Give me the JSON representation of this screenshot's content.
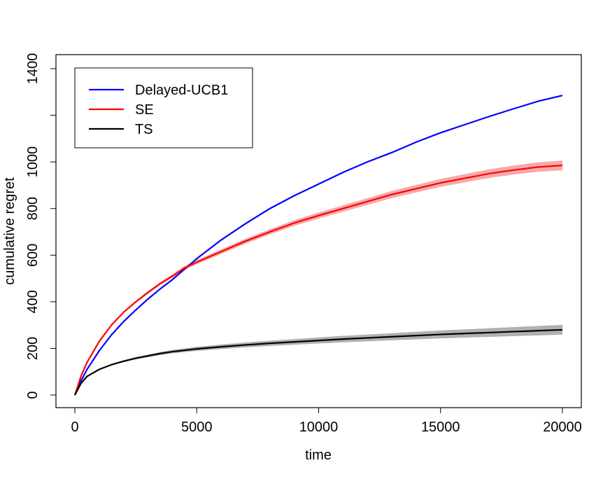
{
  "chart_data": {
    "type": "line",
    "title": "",
    "xlabel": "time",
    "ylabel": "cumulative regret",
    "xlim": [
      0,
      20000
    ],
    "ylim": [
      0,
      1400
    ],
    "x_ticks": [
      0,
      5000,
      10000,
      15000,
      20000
    ],
    "y_ticks": [
      0,
      200,
      400,
      600,
      800,
      1000,
      1400
    ],
    "grid": false,
    "legend_position": "top-left",
    "x": [
      0,
      250,
      500,
      1000,
      1500,
      2000,
      2500,
      3000,
      3500,
      4000,
      4500,
      5000,
      6000,
      7000,
      8000,
      9000,
      10000,
      11000,
      12000,
      13000,
      14000,
      15000,
      16000,
      17000,
      18000,
      19000,
      20000
    ],
    "series": [
      {
        "name": "Delayed-UCB1",
        "color": "#0000ff",
        "band": false,
        "values": [
          0,
          60,
          110,
          190,
          258,
          315,
          365,
          412,
          455,
          495,
          540,
          585,
          665,
          735,
          800,
          855,
          905,
          955,
          1000,
          1040,
          1085,
          1125,
          1160,
          1195,
          1228,
          1260,
          1285
        ]
      },
      {
        "name": "SE",
        "color": "#ff0000",
        "band": true,
        "band_color": "#f5aaaa",
        "values": [
          0,
          80,
          140,
          230,
          300,
          355,
          400,
          440,
          478,
          510,
          545,
          570,
          615,
          660,
          700,
          738,
          770,
          800,
          830,
          860,
          885,
          910,
          930,
          950,
          965,
          978,
          985
        ]
      },
      {
        "name": "TS",
        "color": "#000000",
        "band": true,
        "band_color": "#b0b0b0",
        "values": [
          0,
          50,
          80,
          110,
          130,
          145,
          158,
          168,
          178,
          186,
          192,
          198,
          207,
          215,
          222,
          228,
          234,
          240,
          245,
          250,
          255,
          260,
          264,
          268,
          272,
          276,
          280
        ]
      }
    ]
  }
}
